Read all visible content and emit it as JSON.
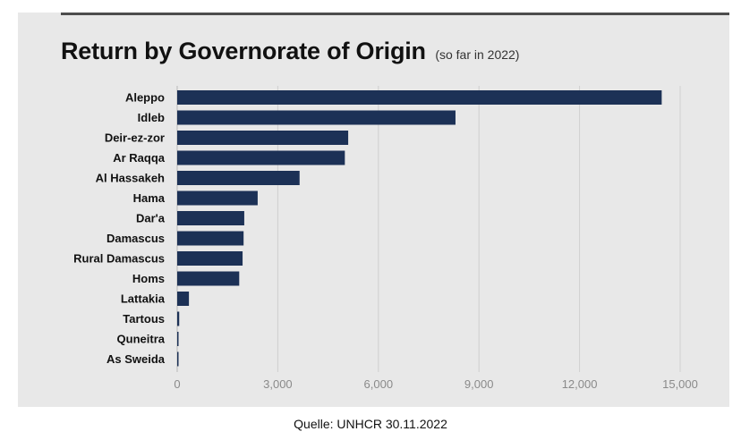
{
  "chart_data": {
    "type": "bar",
    "orientation": "horizontal",
    "title": "Return by Governorate of Origin",
    "subtitle": "(so far in 2022)",
    "categories": [
      "Aleppo",
      "Idleb",
      "Deir-ez-zor",
      "Ar Raqqa",
      "Al Hassakeh",
      "Hama",
      "Dar'a",
      "Damascus",
      "Rural Damascus",
      "Homs",
      "Lattakia",
      "Tartous",
      "Quneitra",
      "As Sweida"
    ],
    "values": [
      14450,
      8300,
      5100,
      5000,
      3650,
      2400,
      2000,
      1980,
      1950,
      1850,
      350,
      60,
      40,
      20
    ],
    "xlim": [
      0,
      16500
    ],
    "xticks": [
      0,
      3000,
      6000,
      9000,
      12000,
      15000
    ],
    "xtick_labels": [
      "0",
      "3,000",
      "6,000",
      "9,000",
      "12,000",
      "15,000"
    ],
    "grid": "vertical",
    "bar_color": "#1c3156"
  },
  "caption": "Quelle: UNHCR 30.11.2022"
}
